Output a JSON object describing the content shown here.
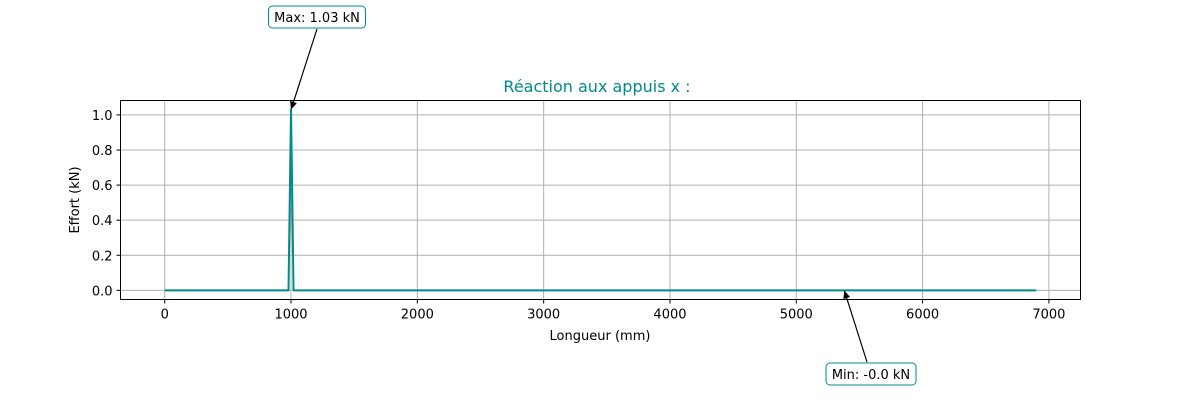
{
  "chart_data": {
    "type": "line",
    "title": "Réaction aux appuis x :",
    "xlabel": "Longueur (mm)",
    "ylabel": "Effort (kN)",
    "xlim": [
      -350,
      7250
    ],
    "ylim": [
      -0.052,
      1.082
    ],
    "x_ticks": [
      0,
      1000,
      2000,
      3000,
      4000,
      5000,
      6000,
      7000
    ],
    "y_ticks": [
      0.0,
      0.2,
      0.4,
      0.6,
      0.8,
      1.0
    ],
    "x_tick_labels": [
      "0",
      "1000",
      "2000",
      "3000",
      "4000",
      "5000",
      "6000",
      "7000"
    ],
    "y_tick_labels": [
      "0.0",
      "0.2",
      "0.4",
      "0.6",
      "0.8",
      "1.0"
    ],
    "grid": true,
    "series": [
      {
        "color": "#008b8b",
        "x": [
          0,
          980,
          1000,
          1020,
          6900
        ],
        "y": [
          0.0,
          0.0,
          1.03,
          0.0,
          0.0
        ]
      }
    ],
    "annotations": [
      {
        "text": "Max: 1.03 kN",
        "point": [
          1000,
          1.03
        ]
      },
      {
        "text": "Min: -0.0 kN",
        "point": [
          5380,
          -0.0
        ]
      }
    ],
    "colors": {
      "line": "#008b8b",
      "title": "#008b8b",
      "grid": "#b0b0b0",
      "annotation_border": "#008b8b"
    }
  }
}
